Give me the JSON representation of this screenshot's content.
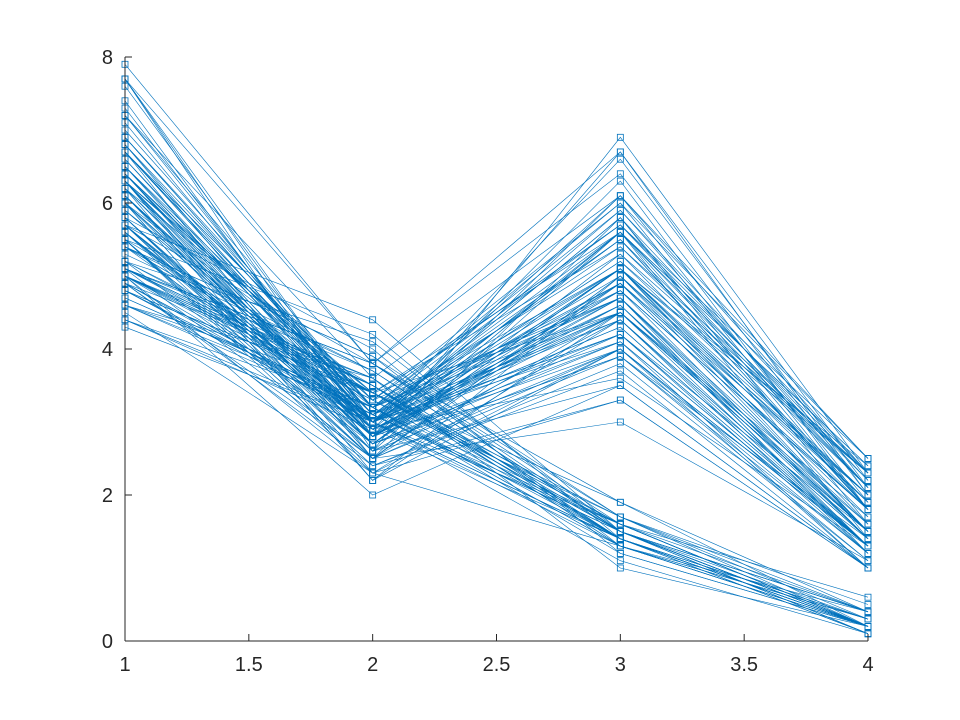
{
  "chart_data": {
    "type": "line",
    "color": "#0072bd",
    "marker": "square",
    "x": [
      1,
      2,
      3,
      4
    ],
    "xlim": [
      1,
      4
    ],
    "xticks": [
      1,
      1.5,
      2,
      2.5,
      3,
      3.5,
      4
    ],
    "ylim": [
      0,
      8
    ],
    "yticks": [
      0,
      2,
      4,
      6,
      8
    ],
    "series": [
      {
        "values": [
          5.1,
          3.5,
          1.4,
          0.2
        ]
      },
      {
        "values": [
          4.9,
          3.0,
          1.4,
          0.2
        ]
      },
      {
        "values": [
          4.7,
          3.2,
          1.3,
          0.2
        ]
      },
      {
        "values": [
          4.6,
          3.1,
          1.5,
          0.2
        ]
      },
      {
        "values": [
          5.0,
          3.6,
          1.4,
          0.2
        ]
      },
      {
        "values": [
          5.4,
          3.9,
          1.7,
          0.4
        ]
      },
      {
        "values": [
          4.6,
          3.4,
          1.4,
          0.3
        ]
      },
      {
        "values": [
          5.0,
          3.4,
          1.5,
          0.2
        ]
      },
      {
        "values": [
          4.4,
          2.9,
          1.4,
          0.2
        ]
      },
      {
        "values": [
          4.9,
          3.1,
          1.5,
          0.1
        ]
      },
      {
        "values": [
          5.4,
          3.7,
          1.5,
          0.2
        ]
      },
      {
        "values": [
          4.8,
          3.4,
          1.6,
          0.2
        ]
      },
      {
        "values": [
          4.8,
          3.0,
          1.4,
          0.1
        ]
      },
      {
        "values": [
          4.3,
          3.0,
          1.1,
          0.1
        ]
      },
      {
        "values": [
          5.8,
          4.0,
          1.2,
          0.2
        ]
      },
      {
        "values": [
          5.7,
          4.4,
          1.5,
          0.4
        ]
      },
      {
        "values": [
          5.4,
          3.9,
          1.3,
          0.4
        ]
      },
      {
        "values": [
          5.1,
          3.5,
          1.4,
          0.3
        ]
      },
      {
        "values": [
          5.7,
          3.8,
          1.7,
          0.3
        ]
      },
      {
        "values": [
          5.1,
          3.8,
          1.5,
          0.3
        ]
      },
      {
        "values": [
          5.4,
          3.4,
          1.7,
          0.2
        ]
      },
      {
        "values": [
          5.1,
          3.7,
          1.5,
          0.4
        ]
      },
      {
        "values": [
          4.6,
          3.6,
          1.0,
          0.2
        ]
      },
      {
        "values": [
          5.1,
          3.3,
          1.7,
          0.5
        ]
      },
      {
        "values": [
          4.8,
          3.4,
          1.9,
          0.2
        ]
      },
      {
        "values": [
          5.0,
          3.0,
          1.6,
          0.2
        ]
      },
      {
        "values": [
          5.0,
          3.4,
          1.6,
          0.4
        ]
      },
      {
        "values": [
          5.2,
          3.5,
          1.5,
          0.2
        ]
      },
      {
        "values": [
          5.2,
          3.4,
          1.4,
          0.2
        ]
      },
      {
        "values": [
          4.7,
          3.2,
          1.6,
          0.2
        ]
      },
      {
        "values": [
          4.8,
          3.1,
          1.6,
          0.2
        ]
      },
      {
        "values": [
          5.4,
          3.4,
          1.5,
          0.4
        ]
      },
      {
        "values": [
          5.2,
          4.1,
          1.5,
          0.1
        ]
      },
      {
        "values": [
          5.5,
          4.2,
          1.4,
          0.2
        ]
      },
      {
        "values": [
          4.9,
          3.1,
          1.5,
          0.2
        ]
      },
      {
        "values": [
          5.0,
          3.2,
          1.2,
          0.2
        ]
      },
      {
        "values": [
          5.5,
          3.5,
          1.3,
          0.2
        ]
      },
      {
        "values": [
          4.9,
          3.6,
          1.4,
          0.1
        ]
      },
      {
        "values": [
          4.4,
          3.0,
          1.3,
          0.2
        ]
      },
      {
        "values": [
          5.1,
          3.4,
          1.5,
          0.2
        ]
      },
      {
        "values": [
          5.0,
          3.5,
          1.3,
          0.3
        ]
      },
      {
        "values": [
          4.5,
          2.3,
          1.3,
          0.3
        ]
      },
      {
        "values": [
          4.4,
          3.2,
          1.3,
          0.2
        ]
      },
      {
        "values": [
          5.0,
          3.5,
          1.6,
          0.6
        ]
      },
      {
        "values": [
          5.1,
          3.8,
          1.9,
          0.4
        ]
      },
      {
        "values": [
          4.8,
          3.0,
          1.4,
          0.3
        ]
      },
      {
        "values": [
          5.1,
          3.8,
          1.6,
          0.2
        ]
      },
      {
        "values": [
          4.6,
          3.2,
          1.4,
          0.2
        ]
      },
      {
        "values": [
          5.3,
          3.7,
          1.5,
          0.2
        ]
      },
      {
        "values": [
          5.0,
          3.3,
          1.4,
          0.2
        ]
      },
      {
        "values": [
          7.0,
          3.2,
          4.7,
          1.4
        ]
      },
      {
        "values": [
          6.4,
          3.2,
          4.5,
          1.5
        ]
      },
      {
        "values": [
          6.9,
          3.1,
          4.9,
          1.5
        ]
      },
      {
        "values": [
          5.5,
          2.3,
          4.0,
          1.3
        ]
      },
      {
        "values": [
          6.5,
          2.8,
          4.6,
          1.5
        ]
      },
      {
        "values": [
          5.7,
          2.8,
          4.5,
          1.3
        ]
      },
      {
        "values": [
          6.3,
          3.3,
          4.7,
          1.6
        ]
      },
      {
        "values": [
          4.9,
          2.4,
          3.3,
          1.0
        ]
      },
      {
        "values": [
          6.6,
          2.9,
          4.6,
          1.3
        ]
      },
      {
        "values": [
          5.2,
          2.7,
          3.9,
          1.4
        ]
      },
      {
        "values": [
          5.0,
          2.0,
          3.5,
          1.0
        ]
      },
      {
        "values": [
          5.9,
          3.0,
          4.2,
          1.5
        ]
      },
      {
        "values": [
          6.0,
          2.2,
          4.0,
          1.0
        ]
      },
      {
        "values": [
          6.1,
          2.9,
          4.7,
          1.4
        ]
      },
      {
        "values": [
          5.6,
          2.9,
          3.6,
          1.3
        ]
      },
      {
        "values": [
          6.7,
          3.1,
          4.4,
          1.4
        ]
      },
      {
        "values": [
          5.6,
          3.0,
          4.5,
          1.5
        ]
      },
      {
        "values": [
          5.8,
          2.7,
          4.1,
          1.0
        ]
      },
      {
        "values": [
          6.2,
          2.2,
          4.5,
          1.5
        ]
      },
      {
        "values": [
          5.6,
          2.5,
          3.9,
          1.1
        ]
      },
      {
        "values": [
          5.9,
          3.2,
          4.8,
          1.8
        ]
      },
      {
        "values": [
          6.1,
          2.8,
          4.0,
          1.3
        ]
      },
      {
        "values": [
          6.3,
          2.5,
          4.9,
          1.5
        ]
      },
      {
        "values": [
          6.1,
          2.8,
          4.7,
          1.2
        ]
      },
      {
        "values": [
          6.4,
          2.9,
          4.3,
          1.3
        ]
      },
      {
        "values": [
          6.6,
          3.0,
          4.4,
          1.4
        ]
      },
      {
        "values": [
          6.8,
          2.8,
          4.8,
          1.4
        ]
      },
      {
        "values": [
          6.7,
          3.0,
          5.0,
          1.7
        ]
      },
      {
        "values": [
          6.0,
          2.9,
          4.5,
          1.5
        ]
      },
      {
        "values": [
          5.7,
          2.6,
          3.5,
          1.0
        ]
      },
      {
        "values": [
          5.5,
          2.4,
          3.8,
          1.1
        ]
      },
      {
        "values": [
          5.5,
          2.4,
          3.7,
          1.0
        ]
      },
      {
        "values": [
          5.8,
          2.7,
          3.9,
          1.2
        ]
      },
      {
        "values": [
          6.0,
          2.7,
          5.1,
          1.6
        ]
      },
      {
        "values": [
          5.4,
          3.0,
          4.5,
          1.5
        ]
      },
      {
        "values": [
          6.0,
          3.4,
          4.5,
          1.6
        ]
      },
      {
        "values": [
          6.7,
          3.1,
          4.7,
          1.5
        ]
      },
      {
        "values": [
          6.3,
          2.3,
          4.4,
          1.3
        ]
      },
      {
        "values": [
          5.6,
          3.0,
          4.1,
          1.3
        ]
      },
      {
        "values": [
          5.5,
          2.5,
          4.0,
          1.3
        ]
      },
      {
        "values": [
          5.5,
          2.6,
          4.4,
          1.2
        ]
      },
      {
        "values": [
          6.1,
          3.0,
          4.6,
          1.4
        ]
      },
      {
        "values": [
          5.8,
          2.6,
          4.0,
          1.2
        ]
      },
      {
        "values": [
          5.0,
          2.3,
          3.3,
          1.0
        ]
      },
      {
        "values": [
          5.6,
          2.7,
          4.2,
          1.3
        ]
      },
      {
        "values": [
          5.7,
          3.0,
          4.2,
          1.2
        ]
      },
      {
        "values": [
          5.7,
          2.9,
          4.2,
          1.3
        ]
      },
      {
        "values": [
          6.2,
          2.9,
          4.3,
          1.3
        ]
      },
      {
        "values": [
          5.1,
          2.5,
          3.0,
          1.1
        ]
      },
      {
        "values": [
          5.7,
          2.8,
          4.1,
          1.3
        ]
      },
      {
        "values": [
          6.3,
          3.3,
          6.0,
          2.5
        ]
      },
      {
        "values": [
          5.8,
          2.7,
          5.1,
          1.9
        ]
      },
      {
        "values": [
          7.1,
          3.0,
          5.9,
          2.1
        ]
      },
      {
        "values": [
          6.3,
          2.9,
          5.6,
          1.8
        ]
      },
      {
        "values": [
          6.5,
          3.0,
          5.8,
          2.2
        ]
      },
      {
        "values": [
          7.6,
          3.0,
          6.6,
          2.1
        ]
      },
      {
        "values": [
          4.9,
          2.5,
          4.5,
          1.7
        ]
      },
      {
        "values": [
          7.3,
          2.9,
          6.3,
          1.8
        ]
      },
      {
        "values": [
          6.7,
          2.5,
          5.8,
          1.8
        ]
      },
      {
        "values": [
          7.2,
          3.6,
          6.1,
          2.5
        ]
      },
      {
        "values": [
          6.5,
          3.2,
          5.1,
          2.0
        ]
      },
      {
        "values": [
          6.4,
          2.7,
          5.3,
          1.9
        ]
      },
      {
        "values": [
          6.8,
          3.0,
          5.5,
          2.1
        ]
      },
      {
        "values": [
          5.7,
          2.5,
          5.0,
          2.0
        ]
      },
      {
        "values": [
          5.8,
          2.8,
          5.1,
          2.4
        ]
      },
      {
        "values": [
          6.4,
          3.2,
          5.3,
          2.3
        ]
      },
      {
        "values": [
          6.5,
          3.0,
          5.5,
          1.8
        ]
      },
      {
        "values": [
          7.7,
          3.8,
          6.7,
          2.2
        ]
      },
      {
        "values": [
          7.7,
          2.6,
          6.9,
          2.3
        ]
      },
      {
        "values": [
          6.0,
          2.2,
          5.0,
          1.5
        ]
      },
      {
        "values": [
          6.9,
          3.2,
          5.7,
          2.3
        ]
      },
      {
        "values": [
          5.6,
          2.8,
          4.9,
          2.0
        ]
      },
      {
        "values": [
          7.7,
          2.8,
          6.7,
          2.0
        ]
      },
      {
        "values": [
          6.3,
          2.7,
          4.9,
          1.8
        ]
      },
      {
        "values": [
          6.7,
          3.3,
          5.7,
          2.1
        ]
      },
      {
        "values": [
          7.2,
          3.2,
          6.0,
          1.8
        ]
      },
      {
        "values": [
          6.2,
          2.8,
          4.8,
          1.8
        ]
      },
      {
        "values": [
          6.1,
          3.0,
          4.9,
          1.8
        ]
      },
      {
        "values": [
          6.4,
          2.8,
          5.6,
          2.1
        ]
      },
      {
        "values": [
          7.2,
          3.0,
          5.8,
          1.6
        ]
      },
      {
        "values": [
          7.4,
          2.8,
          6.1,
          1.9
        ]
      },
      {
        "values": [
          7.9,
          3.8,
          6.4,
          2.0
        ]
      },
      {
        "values": [
          6.4,
          2.8,
          5.6,
          2.2
        ]
      },
      {
        "values": [
          6.3,
          2.8,
          5.1,
          1.5
        ]
      },
      {
        "values": [
          6.1,
          2.6,
          5.6,
          1.4
        ]
      },
      {
        "values": [
          7.7,
          3.0,
          6.1,
          2.3
        ]
      },
      {
        "values": [
          6.3,
          3.4,
          5.6,
          2.4
        ]
      },
      {
        "values": [
          6.4,
          3.1,
          5.5,
          1.8
        ]
      },
      {
        "values": [
          6.0,
          3.0,
          4.8,
          1.8
        ]
      },
      {
        "values": [
          6.9,
          3.1,
          5.4,
          2.1
        ]
      },
      {
        "values": [
          6.7,
          3.1,
          5.6,
          2.4
        ]
      },
      {
        "values": [
          6.9,
          3.1,
          5.1,
          2.3
        ]
      },
      {
        "values": [
          5.8,
          2.7,
          5.1,
          1.9
        ]
      },
      {
        "values": [
          6.8,
          3.2,
          5.9,
          2.3
        ]
      },
      {
        "values": [
          6.7,
          3.3,
          5.7,
          2.5
        ]
      },
      {
        "values": [
          6.7,
          3.0,
          5.2,
          2.3
        ]
      },
      {
        "values": [
          6.3,
          2.5,
          5.0,
          1.9
        ]
      },
      {
        "values": [
          6.5,
          3.0,
          5.2,
          2.0
        ]
      },
      {
        "values": [
          6.2,
          3.4,
          5.4,
          2.3
        ]
      },
      {
        "values": [
          5.9,
          3.0,
          5.1,
          1.8
        ]
      }
    ]
  }
}
